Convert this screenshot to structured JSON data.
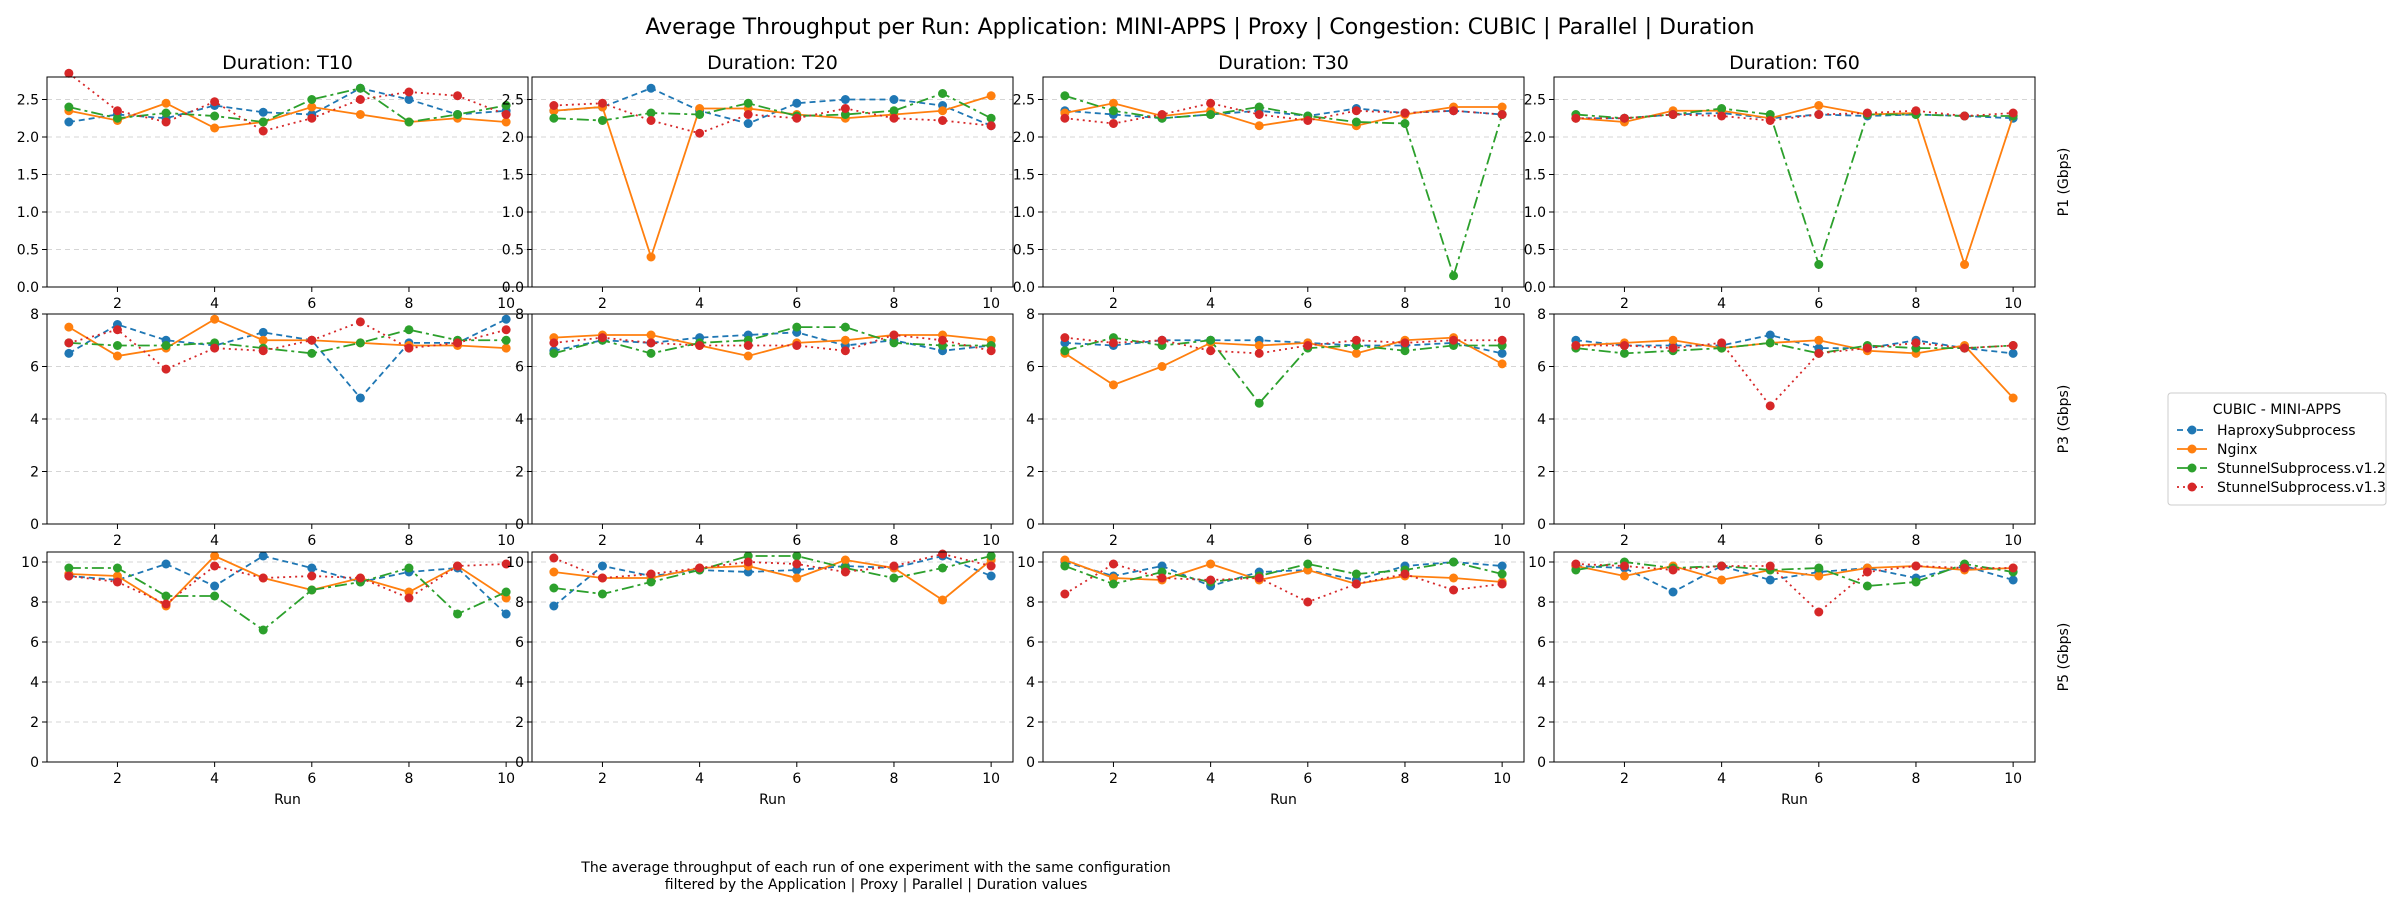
{
  "figure": {
    "title": "Average Throughput per Run: Application: MINI-APPS | Proxy | Congestion: CUBIC | Parallel | Duration",
    "caption_line1": "The average throughput of each run of one experiment with the same configuration",
    "caption_line2": "filtered by the Application | Proxy | Parallel | Duration values"
  },
  "legend": {
    "title": "CUBIC - MINI-APPS"
  },
  "chart_data": {
    "type": "line",
    "xlabel": "Run",
    "x": [
      1,
      2,
      3,
      4,
      5,
      6,
      7,
      8,
      9,
      10
    ],
    "xticks": [
      2,
      4,
      6,
      8,
      10
    ],
    "grid": "y-dashed",
    "legend_position": "right",
    "series_styles": [
      {
        "name": "HaproxySubprocess",
        "color": "#1f77b4",
        "dash": "6,4"
      },
      {
        "name": "Nginx",
        "color": "#ff7f0e",
        "dash": ""
      },
      {
        "name": "StunnelSubprocess.v1.2",
        "color": "#2ca02c",
        "dash": "12,4,3,4"
      },
      {
        "name": "StunnelSubprocess.v1.3",
        "color": "#d62728",
        "dash": "2,4"
      }
    ],
    "columns": [
      "Duration: T10",
      "Duration: T20",
      "Duration: T30",
      "Duration: T60"
    ],
    "rows": [
      {
        "label": "P1 (Gbps)",
        "ylim": [
          0,
          2.8
        ],
        "yticks": [
          0.0,
          0.5,
          1.0,
          1.5,
          2.0,
          2.5
        ],
        "tick_format": "0.0"
      },
      {
        "label": "P3 (Gbps)",
        "ylim": [
          0,
          8.0
        ],
        "yticks": [
          0,
          2,
          4,
          6,
          8
        ],
        "tick_format": "0"
      },
      {
        "label": "P5 (Gbps)",
        "ylim": [
          0,
          10.5
        ],
        "yticks": [
          0,
          2,
          4,
          6,
          8,
          10
        ],
        "tick_format": "0"
      }
    ],
    "panels": [
      {
        "row": 0,
        "col": 0,
        "series": [
          {
            "name": "HaproxySubprocess",
            "values": [
              2.2,
              2.3,
              2.25,
              2.42,
              2.33,
              2.3,
              2.65,
              2.5,
              2.3,
              2.35
            ]
          },
          {
            "name": "Nginx",
            "values": [
              2.35,
              2.22,
              2.45,
              2.12,
              2.2,
              2.4,
              2.3,
              2.2,
              2.25,
              2.2
            ]
          },
          {
            "name": "StunnelSubprocess.v1.2",
            "values": [
              2.4,
              2.25,
              2.32,
              2.28,
              2.2,
              2.5,
              2.65,
              2.2,
              2.3,
              2.42
            ]
          },
          {
            "name": "StunnelSubprocess.v1.3",
            "values": [
              2.85,
              2.35,
              2.2,
              2.47,
              2.08,
              2.25,
              2.5,
              2.6,
              2.55,
              2.3
            ]
          }
        ]
      },
      {
        "row": 0,
        "col": 1,
        "series": [
          {
            "name": "HaproxySubprocess",
            "values": [
              2.35,
              2.4,
              2.65,
              2.35,
              2.18,
              2.45,
              2.5,
              2.5,
              2.42,
              2.15
            ]
          },
          {
            "name": "Nginx",
            "values": [
              2.35,
              2.4,
              0.4,
              2.38,
              2.38,
              2.3,
              2.25,
              2.3,
              2.35,
              2.55
            ]
          },
          {
            "name": "StunnelSubprocess.v1.2",
            "values": [
              2.25,
              2.22,
              2.32,
              2.3,
              2.45,
              2.28,
              2.3,
              2.35,
              2.58,
              2.25
            ]
          },
          {
            "name": "StunnelSubprocess.v1.3",
            "values": [
              2.42,
              2.45,
              2.22,
              2.05,
              2.3,
              2.25,
              2.38,
              2.25,
              2.22,
              2.15
            ]
          }
        ]
      },
      {
        "row": 0,
        "col": 2,
        "series": [
          {
            "name": "HaproxySubprocess",
            "values": [
              2.35,
              2.3,
              2.25,
              2.3,
              2.35,
              2.28,
              2.38,
              2.32,
              2.35,
              2.3
            ]
          },
          {
            "name": "Nginx",
            "values": [
              2.32,
              2.45,
              2.28,
              2.35,
              2.15,
              2.25,
              2.15,
              2.3,
              2.4,
              2.4
            ]
          },
          {
            "name": "StunnelSubprocess.v1.2",
            "values": [
              2.55,
              2.35,
              2.25,
              2.3,
              2.4,
              2.28,
              2.2,
              2.18,
              0.15,
              2.3
            ]
          },
          {
            "name": "StunnelSubprocess.v1.3",
            "values": [
              2.25,
              2.18,
              2.3,
              2.45,
              2.3,
              2.22,
              2.35,
              2.32,
              2.35,
              2.3
            ]
          }
        ]
      },
      {
        "row": 0,
        "col": 3,
        "series": [
          {
            "name": "HaproxySubprocess",
            "values": [
              2.25,
              2.25,
              2.3,
              2.32,
              2.25,
              2.3,
              2.28,
              2.3,
              2.28,
              2.25
            ]
          },
          {
            "name": "Nginx",
            "values": [
              2.25,
              2.2,
              2.35,
              2.35,
              2.25,
              2.42,
              2.3,
              2.32,
              0.3,
              2.28
            ]
          },
          {
            "name": "StunnelSubprocess.v1.2",
            "values": [
              2.3,
              2.25,
              2.3,
              2.38,
              2.3,
              0.3,
              2.3,
              2.3,
              2.28,
              2.28
            ]
          },
          {
            "name": "StunnelSubprocess.v1.3",
            "values": [
              2.25,
              2.25,
              2.3,
              2.28,
              2.22,
              2.3,
              2.32,
              2.35,
              2.28,
              2.32
            ]
          }
        ]
      },
      {
        "row": 1,
        "col": 0,
        "series": [
          {
            "name": "HaproxySubprocess",
            "values": [
              6.5,
              7.6,
              7.0,
              6.8,
              7.3,
              7.0,
              4.8,
              6.9,
              6.9,
              7.8
            ]
          },
          {
            "name": "Nginx",
            "values": [
              7.5,
              6.4,
              6.7,
              7.8,
              7.0,
              7.0,
              6.9,
              6.8,
              6.8,
              6.7
            ]
          },
          {
            "name": "StunnelSubprocess.v1.2",
            "values": [
              6.9,
              6.8,
              6.8,
              6.9,
              6.7,
              6.5,
              6.9,
              7.4,
              7.0,
              7.0
            ]
          },
          {
            "name": "StunnelSubprocess.v1.3",
            "values": [
              6.9,
              7.4,
              5.9,
              6.7,
              6.6,
              7.0,
              7.7,
              6.7,
              6.9,
              7.4
            ]
          }
        ]
      },
      {
        "row": 1,
        "col": 1,
        "series": [
          {
            "name": "HaproxySubprocess",
            "values": [
              6.6,
              7.0,
              6.9,
              7.1,
              7.2,
              7.3,
              6.8,
              7.0,
              6.6,
              6.8
            ]
          },
          {
            "name": "Nginx",
            "values": [
              7.1,
              7.2,
              7.2,
              6.8,
              6.4,
              6.9,
              7.0,
              7.2,
              7.2,
              7.0
            ]
          },
          {
            "name": "StunnelSubprocess.v1.2",
            "values": [
              6.5,
              7.0,
              6.5,
              6.9,
              7.0,
              7.5,
              7.5,
              6.9,
              6.8,
              6.8
            ]
          },
          {
            "name": "StunnelSubprocess.v1.3",
            "values": [
              6.9,
              7.1,
              6.9,
              6.8,
              6.8,
              6.8,
              6.6,
              7.2,
              7.0,
              6.6
            ]
          }
        ]
      },
      {
        "row": 1,
        "col": 2,
        "series": [
          {
            "name": "HaproxySubprocess",
            "values": [
              6.9,
              6.8,
              7.0,
              7.0,
              7.0,
              6.9,
              6.8,
              6.8,
              6.9,
              6.5
            ]
          },
          {
            "name": "Nginx",
            "values": [
              6.5,
              5.3,
              6.0,
              6.9,
              6.8,
              6.9,
              6.5,
              7.0,
              7.1,
              6.1
            ]
          },
          {
            "name": "StunnelSubprocess.v1.2",
            "values": [
              6.6,
              7.1,
              6.8,
              7.0,
              4.6,
              6.7,
              6.8,
              6.6,
              6.8,
              6.8
            ]
          },
          {
            "name": "StunnelSubprocess.v1.3",
            "values": [
              7.1,
              6.9,
              7.0,
              6.6,
              6.5,
              6.8,
              7.0,
              6.9,
              7.0,
              7.0
            ]
          }
        ]
      },
      {
        "row": 1,
        "col": 3,
        "series": [
          {
            "name": "HaproxySubprocess",
            "values": [
              7.0,
              6.8,
              6.8,
              6.8,
              7.2,
              6.7,
              6.7,
              7.0,
              6.7,
              6.5
            ]
          },
          {
            "name": "Nginx",
            "values": [
              6.8,
              6.9,
              7.0,
              6.7,
              6.9,
              7.0,
              6.6,
              6.5,
              6.8,
              4.8
            ]
          },
          {
            "name": "StunnelSubprocess.v1.2",
            "values": [
              6.7,
              6.5,
              6.6,
              6.7,
              6.9,
              6.5,
              6.8,
              6.7,
              6.7,
              6.8
            ]
          },
          {
            "name": "StunnelSubprocess.v1.3",
            "values": [
              6.8,
              6.8,
              6.7,
              6.9,
              4.5,
              6.5,
              6.7,
              6.9,
              6.7,
              6.8
            ]
          }
        ]
      },
      {
        "row": 2,
        "col": 0,
        "series": [
          {
            "name": "HaproxySubprocess",
            "values": [
              9.3,
              9.1,
              9.9,
              8.8,
              10.3,
              9.7,
              9.0,
              9.5,
              9.7,
              7.4
            ]
          },
          {
            "name": "Nginx",
            "values": [
              9.4,
              9.3,
              7.8,
              10.3,
              9.2,
              8.6,
              9.2,
              8.5,
              9.8,
              8.2
            ]
          },
          {
            "name": "StunnelSubprocess.v1.2",
            "values": [
              9.7,
              9.7,
              8.3,
              8.3,
              6.6,
              8.6,
              9.0,
              9.7,
              7.4,
              8.5
            ]
          },
          {
            "name": "StunnelSubprocess.v1.3",
            "values": [
              9.3,
              9.0,
              7.9,
              9.8,
              9.2,
              9.3,
              9.2,
              8.2,
              9.8,
              9.9
            ]
          }
        ]
      },
      {
        "row": 2,
        "col": 1,
        "series": [
          {
            "name": "HaproxySubprocess",
            "values": [
              7.8,
              9.8,
              9.3,
              9.6,
              9.5,
              9.6,
              9.8,
              9.7,
              10.3,
              9.3
            ]
          },
          {
            "name": "Nginx",
            "values": [
              9.5,
              9.2,
              9.2,
              9.7,
              9.8,
              9.2,
              10.1,
              9.7,
              8.1,
              10.1
            ]
          },
          {
            "name": "StunnelSubprocess.v1.2",
            "values": [
              8.7,
              8.4,
              9.0,
              9.6,
              10.3,
              10.3,
              9.7,
              9.2,
              9.7,
              10.3
            ]
          },
          {
            "name": "StunnelSubprocess.v1.3",
            "values": [
              10.2,
              9.2,
              9.4,
              9.7,
              10.0,
              9.9,
              9.5,
              9.8,
              10.4,
              9.8
            ]
          }
        ]
      },
      {
        "row": 2,
        "col": 2,
        "series": [
          {
            "name": "HaproxySubprocess",
            "values": [
              10.0,
              9.3,
              9.8,
              8.8,
              9.5,
              9.6,
              9.1,
              9.8,
              10.0,
              9.8
            ]
          },
          {
            "name": "Nginx",
            "values": [
              10.1,
              9.2,
              9.1,
              9.9,
              9.1,
              9.6,
              8.9,
              9.3,
              9.2,
              9.0
            ]
          },
          {
            "name": "StunnelSubprocess.v1.2",
            "values": [
              9.8,
              8.9,
              9.5,
              9.0,
              9.3,
              9.9,
              9.4,
              9.6,
              10.0,
              9.4
            ]
          },
          {
            "name": "StunnelSubprocess.v1.3",
            "values": [
              8.4,
              9.9,
              9.2,
              9.1,
              9.2,
              8.0,
              8.9,
              9.4,
              8.6,
              8.9
            ]
          }
        ]
      },
      {
        "row": 2,
        "col": 3,
        "series": [
          {
            "name": "HaproxySubprocess",
            "values": [
              9.8,
              9.7,
              8.5,
              9.8,
              9.1,
              9.5,
              9.7,
              9.2,
              9.8,
              9.1
            ]
          },
          {
            "name": "Nginx",
            "values": [
              9.8,
              9.3,
              9.8,
              9.1,
              9.6,
              9.3,
              9.7,
              9.8,
              9.6,
              9.7
            ]
          },
          {
            "name": "StunnelSubprocess.v1.2",
            "values": [
              9.6,
              10.0,
              9.7,
              9.8,
              9.6,
              9.7,
              8.8,
              9.0,
              9.9,
              9.5
            ]
          },
          {
            "name": "StunnelSubprocess.v1.3",
            "values": [
              9.9,
              9.8,
              9.6,
              9.8,
              9.8,
              7.5,
              9.5,
              9.8,
              9.7,
              9.7
            ]
          }
        ]
      }
    ]
  }
}
